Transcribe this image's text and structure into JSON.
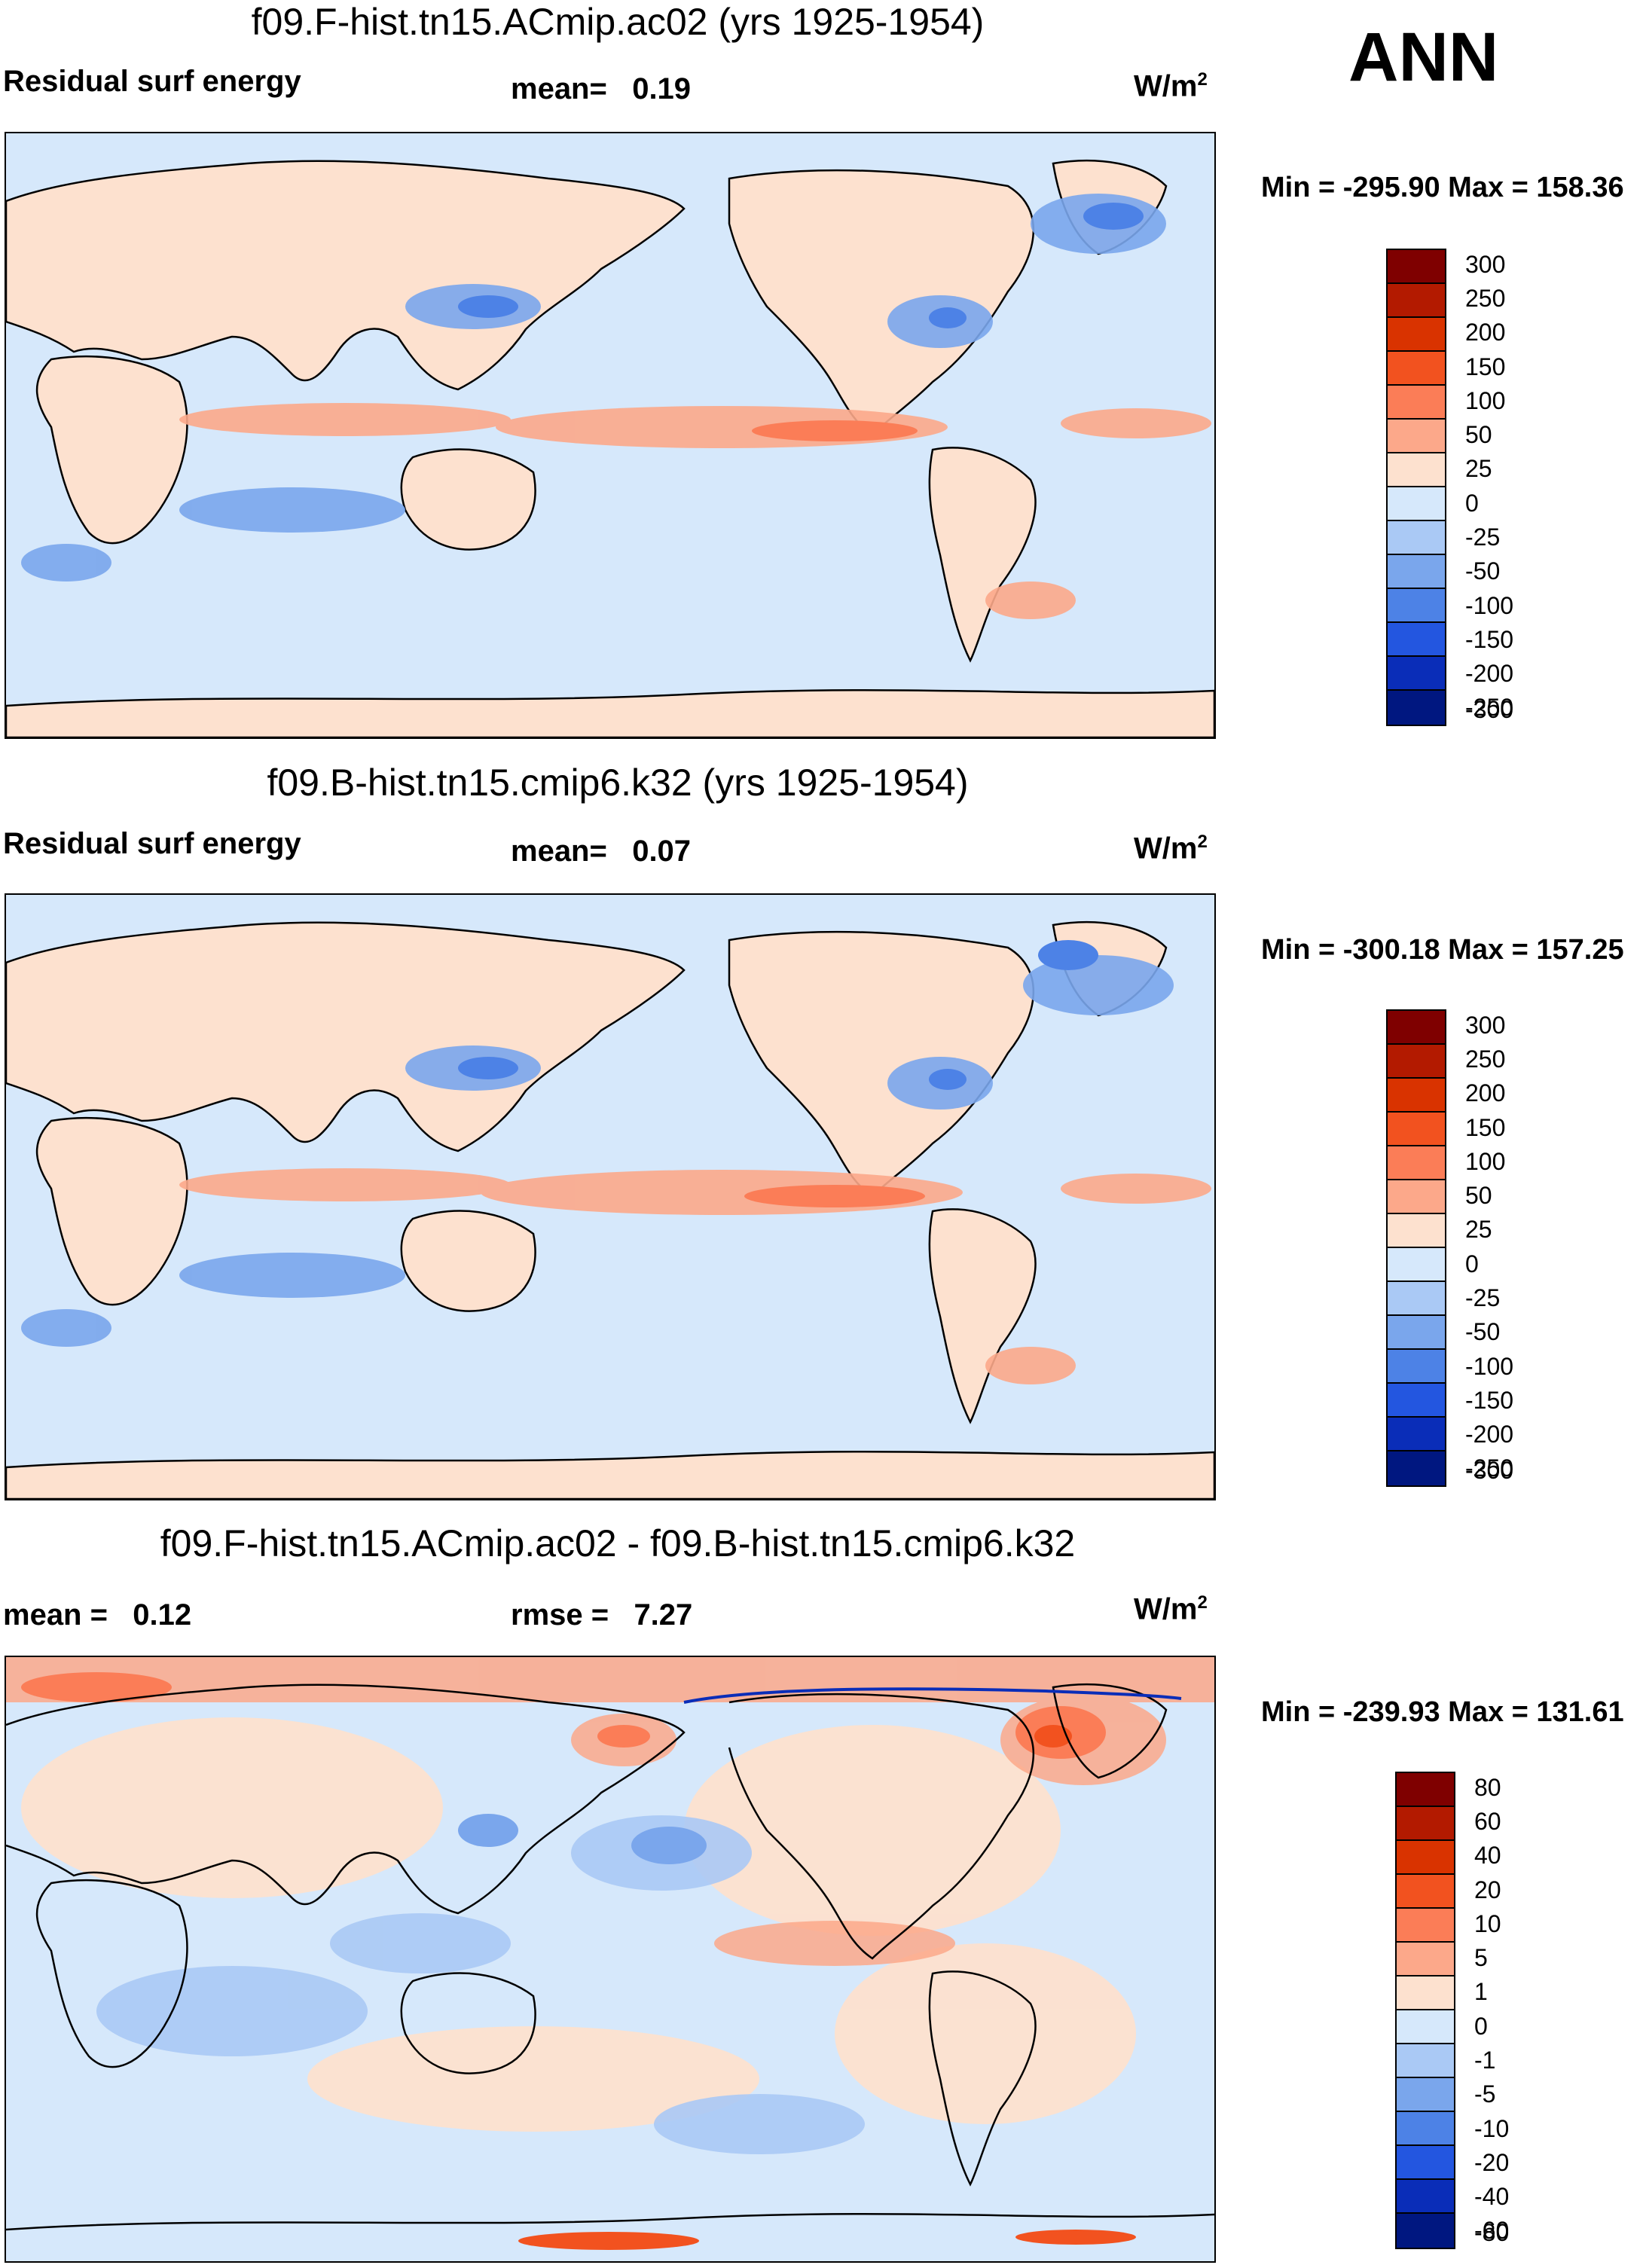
{
  "season": "ANN",
  "panels": [
    {
      "id": "test",
      "title": "f09.F-hist.tn15.ACmip.ac02 (yrs 1925-1954)",
      "left_label": "Residual surf energy",
      "center_label": "mean=   0.19",
      "units": "W/m",
      "units_exp": "2",
      "minmax": "Min = -295.90 Max = 158.36",
      "colorbar": {
        "colors": [
          "#7f0000",
          "#b31a00",
          "#d93300",
          "#f2521f",
          "#fb7d57",
          "#fca88a",
          "#fde1cf",
          "#d6e8fb",
          "#aac9f5",
          "#7aa6ec",
          "#4d82e6",
          "#2356e0",
          "#0a2db8",
          "#001780"
        ],
        "ticks": [
          "300",
          "250",
          "200",
          "150",
          "100",
          "50",
          "25",
          "0",
          "-25",
          "-50",
          "-100",
          "-150",
          "-200",
          "-250",
          "-300"
        ]
      }
    },
    {
      "id": "control",
      "title": "f09.B-hist.tn15.cmip6.k32 (yrs 1925-1954)",
      "left_label": "Residual surf energy",
      "center_label": "mean=   0.07",
      "units": "W/m",
      "units_exp": "2",
      "minmax": "Min = -300.18 Max = 157.25",
      "colorbar": {
        "colors": [
          "#7f0000",
          "#b31a00",
          "#d93300",
          "#f2521f",
          "#fb7d57",
          "#fca88a",
          "#fde1cf",
          "#d6e8fb",
          "#aac9f5",
          "#7aa6ec",
          "#4d82e6",
          "#2356e0",
          "#0a2db8",
          "#001780"
        ],
        "ticks": [
          "300",
          "250",
          "200",
          "150",
          "100",
          "50",
          "25",
          "0",
          "-25",
          "-50",
          "-100",
          "-150",
          "-200",
          "-250",
          "-300"
        ]
      }
    },
    {
      "id": "difference",
      "title": "f09.F-hist.tn15.ACmip.ac02 - f09.B-hist.tn15.cmip6.k32",
      "left_label": "mean =   0.12",
      "center_label": "rmse =   7.27",
      "units": "W/m",
      "units_exp": "2",
      "minmax": "Min = -239.93 Max = 131.61",
      "colorbar": {
        "colors": [
          "#7f0000",
          "#b31a00",
          "#d93300",
          "#f2521f",
          "#fb7d57",
          "#fca88a",
          "#fde1cf",
          "#d6e8fb",
          "#aac9f5",
          "#7aa6ec",
          "#4d82e6",
          "#2356e0",
          "#0a2db8",
          "#001780"
        ],
        "ticks": [
          "80",
          "60",
          "40",
          "20",
          "10",
          "5",
          "1",
          "0",
          "-1",
          "-5",
          "-10",
          "-20",
          "-40",
          "-60",
          "-80"
        ]
      }
    }
  ]
}
